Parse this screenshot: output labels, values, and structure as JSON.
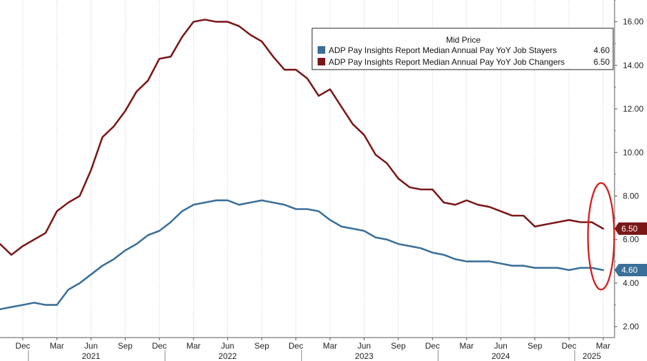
{
  "chart_data": {
    "type": "line",
    "legend": {
      "title": "Mid Price",
      "placement": "top-right"
    },
    "series": [
      {
        "name": "ADP Pay Insights Report Median Annual Pay YoY Job Stayers",
        "last_value": "4.60",
        "color": "#3a6f99",
        "x": [
          "2020-10",
          "2020-11",
          "2020-12",
          "2021-01",
          "2021-02",
          "2021-03",
          "2021-04",
          "2021-05",
          "2021-06",
          "2021-07",
          "2021-08",
          "2021-09",
          "2021-10",
          "2021-11",
          "2021-12",
          "2022-01",
          "2022-02",
          "2022-03",
          "2022-04",
          "2022-05",
          "2022-06",
          "2022-07",
          "2022-08",
          "2022-09",
          "2022-10",
          "2022-11",
          "2022-12",
          "2023-01",
          "2023-02",
          "2023-03",
          "2023-04",
          "2023-05",
          "2023-06",
          "2023-07",
          "2023-08",
          "2023-09",
          "2023-10",
          "2023-11",
          "2023-12",
          "2024-01",
          "2024-02",
          "2024-03",
          "2024-04",
          "2024-05",
          "2024-06",
          "2024-07",
          "2024-08",
          "2024-09",
          "2024-10",
          "2024-11",
          "2024-12",
          "2025-01",
          "2025-02",
          "2025-03"
        ],
        "values": [
          2.8,
          2.9,
          3.0,
          3.1,
          3.0,
          3.0,
          3.7,
          4.0,
          4.4,
          4.8,
          5.1,
          5.5,
          5.8,
          6.2,
          6.4,
          6.8,
          7.3,
          7.6,
          7.7,
          7.8,
          7.8,
          7.6,
          7.7,
          7.8,
          7.7,
          7.6,
          7.4,
          7.4,
          7.3,
          6.9,
          6.6,
          6.5,
          6.4,
          6.1,
          6.0,
          5.8,
          5.7,
          5.6,
          5.4,
          5.3,
          5.1,
          5.0,
          5.0,
          5.0,
          4.9,
          4.8,
          4.8,
          4.7,
          4.7,
          4.7,
          4.6,
          4.7,
          4.7,
          4.6
        ]
      },
      {
        "name": "ADP Pay Insights Report Median Annual Pay YoY Job Changers",
        "last_value": "6.50",
        "color": "#7a1818",
        "x": [
          "2020-10",
          "2020-11",
          "2020-12",
          "2021-01",
          "2021-02",
          "2021-03",
          "2021-04",
          "2021-05",
          "2021-06",
          "2021-07",
          "2021-08",
          "2021-09",
          "2021-10",
          "2021-11",
          "2021-12",
          "2022-01",
          "2022-02",
          "2022-03",
          "2022-04",
          "2022-05",
          "2022-06",
          "2022-07",
          "2022-08",
          "2022-09",
          "2022-10",
          "2022-11",
          "2022-12",
          "2023-01",
          "2023-02",
          "2023-03",
          "2023-04",
          "2023-05",
          "2023-06",
          "2023-07",
          "2023-08",
          "2023-09",
          "2023-10",
          "2023-11",
          "2023-12",
          "2024-01",
          "2024-02",
          "2024-03",
          "2024-04",
          "2024-05",
          "2024-06",
          "2024-07",
          "2024-08",
          "2024-09",
          "2024-10",
          "2024-11",
          "2024-12",
          "2025-01",
          "2025-02",
          "2025-03"
        ],
        "values": [
          5.8,
          5.3,
          5.7,
          6.0,
          6.3,
          7.3,
          7.7,
          8.0,
          9.2,
          10.7,
          11.2,
          11.9,
          12.8,
          13.3,
          14.3,
          14.4,
          15.3,
          16.0,
          16.1,
          16.0,
          16.0,
          15.8,
          15.4,
          15.1,
          14.4,
          13.8,
          13.8,
          13.4,
          12.6,
          12.9,
          12.1,
          11.3,
          10.8,
          9.9,
          9.5,
          8.8,
          8.4,
          8.3,
          8.3,
          7.7,
          7.6,
          7.8,
          7.6,
          7.5,
          7.3,
          7.1,
          7.1,
          6.6,
          6.7,
          6.8,
          6.9,
          6.8,
          6.8,
          6.5
        ]
      }
    ],
    "y_axis": {
      "position": "right",
      "range": [
        1.5,
        17
      ],
      "ticks": [
        "2.00",
        "4.00",
        "6.00",
        "8.00",
        "10.00",
        "12.00",
        "14.00",
        "16.00"
      ]
    },
    "x_axis": {
      "range": [
        "2020-10",
        "2025-04"
      ],
      "month_ticks": [
        {
          "label": "Dec",
          "x": "2020-12"
        },
        {
          "label": "Mar",
          "x": "2021-03"
        },
        {
          "label": "Jun",
          "x": "2021-06"
        },
        {
          "label": "Sep",
          "x": "2021-09"
        },
        {
          "label": "Dec",
          "x": "2021-12"
        },
        {
          "label": "Mar",
          "x": "2022-03"
        },
        {
          "label": "Jun",
          "x": "2022-06"
        },
        {
          "label": "Sep",
          "x": "2022-09"
        },
        {
          "label": "Dec",
          "x": "2022-12"
        },
        {
          "label": "Mar",
          "x": "2023-03"
        },
        {
          "label": "Jun",
          "x": "2023-06"
        },
        {
          "label": "Sep",
          "x": "2023-09"
        },
        {
          "label": "Dec",
          "x": "2023-12"
        },
        {
          "label": "Mar",
          "x": "2024-03"
        },
        {
          "label": "Jun",
          "x": "2024-06"
        },
        {
          "label": "Sep",
          "x": "2024-09"
        },
        {
          "label": "Dec",
          "x": "2024-12"
        },
        {
          "label": "Mar",
          "x": "2025-03"
        }
      ],
      "years": [
        {
          "label": "2021",
          "x": "2021-06"
        },
        {
          "label": "2022",
          "x": "2022-06"
        },
        {
          "label": "2023",
          "x": "2023-06"
        },
        {
          "label": "2024",
          "x": "2024-06"
        },
        {
          "label": "2025",
          "x": "2025-02"
        }
      ],
      "year_boundaries": [
        "2021-01",
        "2022-01",
        "2023-01",
        "2024-01",
        "2025-01"
      ]
    },
    "gridlines": "vertical dotted",
    "annotation": {
      "type": "ellipse",
      "color": "#d62020",
      "around": "2025-03 values"
    }
  }
}
